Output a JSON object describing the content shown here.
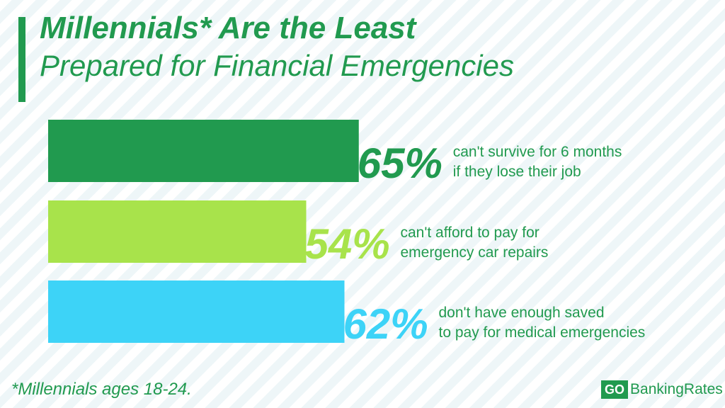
{
  "header": {
    "title_line1": "Millennials* Are the Least",
    "title_line2": "Prepared for Financial Emergencies"
  },
  "chart_data": {
    "type": "bar",
    "orientation": "horizontal",
    "categories": [
      "can't survive for 6 months if they lose their job",
      "can't afford to pay for emergency car repairs",
      "don't have enough saved to pay for medical emergencies"
    ],
    "values": [
      65,
      54,
      62
    ],
    "value_labels": [
      "65%",
      "54%",
      "62%"
    ],
    "description_lines": [
      [
        "can't survive for 6 months",
        "if they lose their job"
      ],
      [
        "can't afford to pay for",
        "emergency car repairs"
      ],
      [
        "don't have enough saved",
        "to pay for medical emergencies"
      ]
    ],
    "colors": [
      "#219a4f",
      "#a8e34b",
      "#3dd3f7"
    ],
    "xlim": [
      0,
      100
    ],
    "grid": false,
    "legend": "none"
  },
  "footnote": "*Millennials ages 18-24.",
  "brand": {
    "go": "GO",
    "rest": "BankingRates"
  }
}
